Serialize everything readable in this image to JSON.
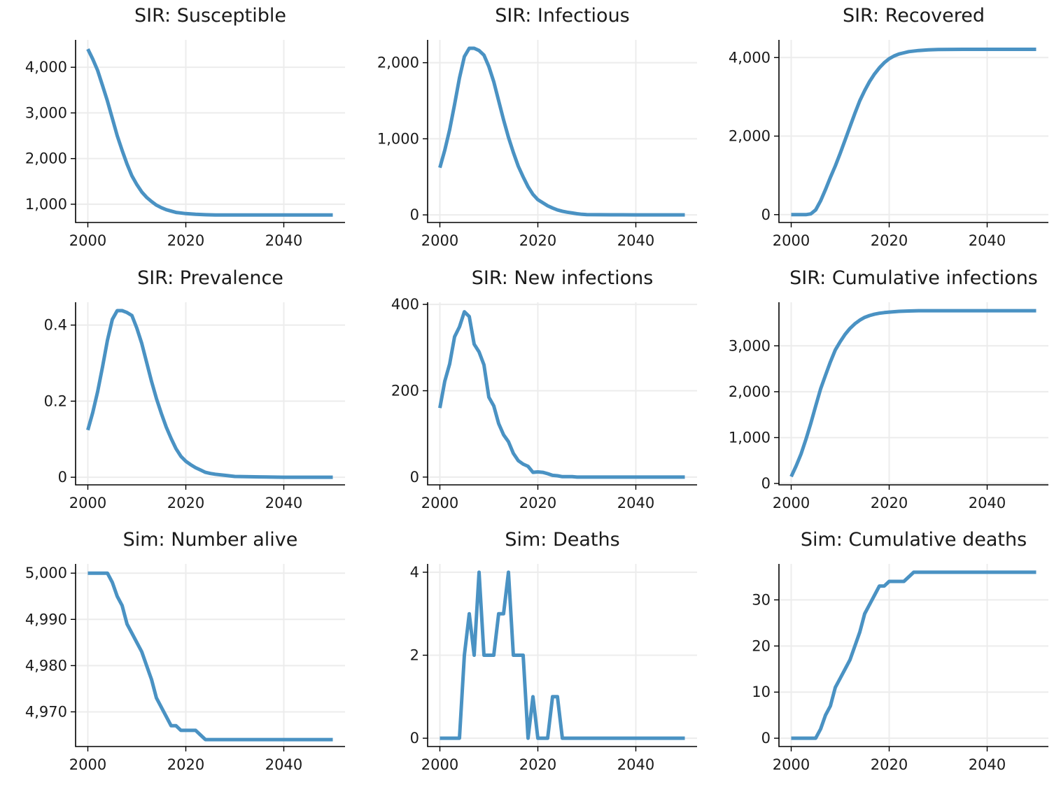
{
  "style": {
    "line_color": "#4a92c3",
    "grid_color": "#ececec",
    "grid": true,
    "axis_spines": "left-bottom"
  },
  "chart_data": [
    {
      "type": "line",
      "title": "SIR: Susceptible",
      "xlim": [
        1997.5,
        2052.5
      ],
      "xticks": [
        2000,
        2020,
        2040
      ],
      "xtick_labels": [
        "2000",
        "2020",
        "2040"
      ],
      "ylim": [
        600,
        4600
      ],
      "yticks": [
        1000,
        2000,
        3000,
        4000
      ],
      "ytick_labels": [
        "1,000",
        "2,000",
        "3,000",
        "4,000"
      ],
      "x": [
        2000,
        2001,
        2002,
        2003,
        2004,
        2005,
        2006,
        2007,
        2008,
        2009,
        2010,
        2011,
        2012,
        2013,
        2014,
        2015,
        2016,
        2017,
        2018,
        2020,
        2022,
        2024,
        2026,
        2030,
        2040,
        2050
      ],
      "y": [
        4400,
        4180,
        3930,
        3600,
        3260,
        2880,
        2500,
        2180,
        1880,
        1620,
        1430,
        1270,
        1150,
        1060,
        980,
        925,
        880,
        850,
        820,
        795,
        780,
        770,
        765,
        765,
        765,
        765
      ]
    },
    {
      "type": "line",
      "title": "SIR: Infectious",
      "xlim": [
        1997.5,
        2052.5
      ],
      "xticks": [
        2000,
        2020,
        2040
      ],
      "xtick_labels": [
        "2000",
        "2020",
        "2040"
      ],
      "ylim": [
        -100,
        2300
      ],
      "yticks": [
        0,
        1000,
        2000
      ],
      "ytick_labels": [
        "0",
        "1,000",
        "2,000"
      ],
      "x": [
        2000,
        2001,
        2002,
        2003,
        2004,
        2005,
        2006,
        2007,
        2008,
        2009,
        2010,
        2011,
        2012,
        2013,
        2014,
        2015,
        2016,
        2017,
        2018,
        2019,
        2020,
        2021,
        2022,
        2023,
        2024,
        2025,
        2026,
        2027,
        2028,
        2029,
        2030,
        2035,
        2040,
        2050
      ],
      "y": [
        620,
        850,
        1120,
        1450,
        1800,
        2080,
        2190,
        2190,
        2160,
        2100,
        1950,
        1750,
        1500,
        1250,
        1020,
        820,
        640,
        500,
        370,
        270,
        200,
        160,
        120,
        90,
        65,
        48,
        35,
        25,
        15,
        8,
        4,
        1,
        0,
        0
      ]
    },
    {
      "type": "line",
      "title": "SIR: Recovered",
      "xlim": [
        1997.5,
        2052.5
      ],
      "xticks": [
        2000,
        2020,
        2040
      ],
      "xtick_labels": [
        "2000",
        "2020",
        "2040"
      ],
      "ylim": [
        -200,
        4450
      ],
      "yticks": [
        0,
        2000,
        4000
      ],
      "ytick_labels": [
        "0",
        "2,000",
        "4,000"
      ],
      "x": [
        2000,
        2001,
        2002,
        2003,
        2004,
        2005,
        2006,
        2007,
        2008,
        2009,
        2010,
        2011,
        2012,
        2013,
        2014,
        2015,
        2016,
        2017,
        2018,
        2019,
        2020,
        2021,
        2022,
        2023,
        2024,
        2026,
        2028,
        2030,
        2035,
        2040,
        2050
      ],
      "y": [
        0,
        0,
        0,
        0,
        20,
        120,
        350,
        640,
        950,
        1240,
        1560,
        1900,
        2240,
        2580,
        2900,
        3160,
        3390,
        3580,
        3740,
        3870,
        3970,
        4040,
        4090,
        4120,
        4150,
        4180,
        4195,
        4205,
        4210,
        4210,
        4210
      ]
    },
    {
      "type": "line",
      "title": "SIR: Prevalence",
      "xlim": [
        1997.5,
        2052.5
      ],
      "xticks": [
        2000,
        2020,
        2040
      ],
      "xtick_labels": [
        "2000",
        "2020",
        "2040"
      ],
      "ylim": [
        -0.02,
        0.46
      ],
      "yticks": [
        0,
        0.2,
        0.4
      ],
      "ytick_labels": [
        "0",
        "0.2",
        "0.4"
      ],
      "x": [
        2000,
        2001,
        2002,
        2003,
        2004,
        2005,
        2006,
        2007,
        2008,
        2009,
        2010,
        2011,
        2012,
        2013,
        2014,
        2015,
        2016,
        2017,
        2018,
        2019,
        2020,
        2021,
        2022,
        2023,
        2024,
        2025,
        2026,
        2028,
        2030,
        2035,
        2040,
        2050
      ],
      "y": [
        0.124,
        0.17,
        0.225,
        0.29,
        0.36,
        0.415,
        0.438,
        0.438,
        0.433,
        0.425,
        0.392,
        0.352,
        0.302,
        0.252,
        0.207,
        0.168,
        0.132,
        0.102,
        0.075,
        0.055,
        0.042,
        0.033,
        0.025,
        0.019,
        0.013,
        0.01,
        0.008,
        0.005,
        0.002,
        0.001,
        0,
        0
      ]
    },
    {
      "type": "line",
      "title": "SIR: New infections",
      "xlim": [
        1997.5,
        2052.5
      ],
      "xticks": [
        2000,
        2020,
        2040
      ],
      "xtick_labels": [
        "2000",
        "2020",
        "2040"
      ],
      "ylim": [
        -18,
        405
      ],
      "yticks": [
        0,
        200,
        400
      ],
      "ytick_labels": [
        "0",
        "200",
        "400"
      ],
      "x": [
        2000,
        2001,
        2002,
        2003,
        2004,
        2005,
        2006,
        2007,
        2008,
        2009,
        2010,
        2011,
        2012,
        2013,
        2014,
        2015,
        2016,
        2017,
        2018,
        2019,
        2020,
        2021,
        2022,
        2023,
        2024,
        2025,
        2026,
        2027,
        2028,
        2030,
        2040,
        2050
      ],
      "y": [
        160,
        222,
        262,
        325,
        348,
        383,
        372,
        308,
        290,
        260,
        185,
        165,
        124,
        98,
        82,
        55,
        38,
        30,
        25,
        11,
        12,
        11,
        8,
        4,
        3,
        1,
        1,
        1,
        0,
        0,
        0,
        0
      ]
    },
    {
      "type": "line",
      "title": "SIR: Cumulative infections",
      "xlim": [
        1997.5,
        2052.5
      ],
      "xticks": [
        2000,
        2020,
        2040
      ],
      "xtick_labels": [
        "2000",
        "2020",
        "2040"
      ],
      "ylim": [
        -30,
        3950
      ],
      "yticks": [
        0,
        1000,
        2000,
        3000
      ],
      "ytick_labels": [
        "0",
        "1,000",
        "2,000",
        "3,000"
      ],
      "x": [
        2000,
        2001,
        2002,
        2003,
        2004,
        2005,
        2006,
        2007,
        2008,
        2009,
        2010,
        2011,
        2012,
        2013,
        2014,
        2015,
        2016,
        2017,
        2018,
        2019,
        2020,
        2022,
        2024,
        2026,
        2028,
        2030,
        2040,
        2050
      ],
      "y": [
        150,
        380,
        640,
        960,
        1310,
        1690,
        2060,
        2360,
        2650,
        2910,
        3090,
        3250,
        3380,
        3480,
        3560,
        3620,
        3660,
        3690,
        3710,
        3725,
        3735,
        3752,
        3760,
        3765,
        3765,
        3765,
        3765,
        3765
      ]
    },
    {
      "type": "line",
      "title": "Sim: Number alive",
      "xlim": [
        1997.5,
        2052.5
      ],
      "xticks": [
        2000,
        2020,
        2040
      ],
      "xtick_labels": [
        "2000",
        "2020",
        "2040"
      ],
      "ylim": [
        4962.5,
        5002
      ],
      "yticks": [
        4970,
        4980,
        4990,
        5000
      ],
      "ytick_labels": [
        "4,970",
        "4,980",
        "4,990",
        "5,000"
      ],
      "x": [
        2000,
        2001,
        2002,
        2003,
        2004,
        2005,
        2006,
        2007,
        2008,
        2009,
        2010,
        2011,
        2012,
        2013,
        2014,
        2015,
        2016,
        2017,
        2018,
        2019,
        2020,
        2021,
        2022,
        2023,
        2024,
        2025,
        2030,
        2040,
        2050
      ],
      "y": [
        5000,
        5000,
        5000,
        5000,
        5000,
        4998,
        4995,
        4993,
        4989,
        4987,
        4985,
        4983,
        4980,
        4977,
        4973,
        4971,
        4969,
        4967,
        4967,
        4966,
        4966,
        4966,
        4966,
        4965,
        4964,
        4964,
        4964,
        4964,
        4964
      ]
    },
    {
      "type": "line",
      "title": "Sim: Deaths",
      "xlim": [
        1997.5,
        2052.5
      ],
      "xticks": [
        2000,
        2020,
        2040
      ],
      "xtick_labels": [
        "2000",
        "2020",
        "2040"
      ],
      "ylim": [
        -0.2,
        4.2
      ],
      "yticks": [
        0,
        2,
        4
      ],
      "ytick_labels": [
        "0",
        "2",
        "4"
      ],
      "x": [
        2000,
        2001,
        2002,
        2003,
        2004,
        2005,
        2006,
        2007,
        2008,
        2009,
        2010,
        2011,
        2012,
        2013,
        2014,
        2015,
        2016,
        2017,
        2018,
        2019,
        2020,
        2021,
        2022,
        2023,
        2024,
        2025,
        2026,
        2030,
        2040,
        2050
      ],
      "y": [
        0,
        0,
        0,
        0,
        0,
        2,
        3,
        2,
        4,
        2,
        2,
        2,
        3,
        3,
        4,
        2,
        2,
        2,
        0,
        1,
        0,
        0,
        0,
        1,
        1,
        0,
        0,
        0,
        0,
        0
      ]
    },
    {
      "type": "line",
      "title": "Sim: Cumulative deaths",
      "xlim": [
        1997.5,
        2052.5
      ],
      "xticks": [
        2000,
        2020,
        2040
      ],
      "xtick_labels": [
        "2000",
        "2020",
        "2040"
      ],
      "ylim": [
        -1.8,
        37.8
      ],
      "yticks": [
        0,
        10,
        20,
        30
      ],
      "ytick_labels": [
        "0",
        "10",
        "20",
        "30"
      ],
      "x": [
        2000,
        2001,
        2002,
        2003,
        2004,
        2005,
        2006,
        2007,
        2008,
        2009,
        2010,
        2011,
        2012,
        2013,
        2014,
        2015,
        2016,
        2017,
        2018,
        2019,
        2020,
        2021,
        2022,
        2023,
        2024,
        2025,
        2026,
        2030,
        2040,
        2050
      ],
      "y": [
        0,
        0,
        0,
        0,
        0,
        0,
        2,
        5,
        7,
        11,
        13,
        15,
        17,
        20,
        23,
        27,
        29,
        31,
        33,
        33,
        34,
        34,
        34,
        34,
        35,
        36,
        36,
        36,
        36,
        36
      ]
    }
  ]
}
